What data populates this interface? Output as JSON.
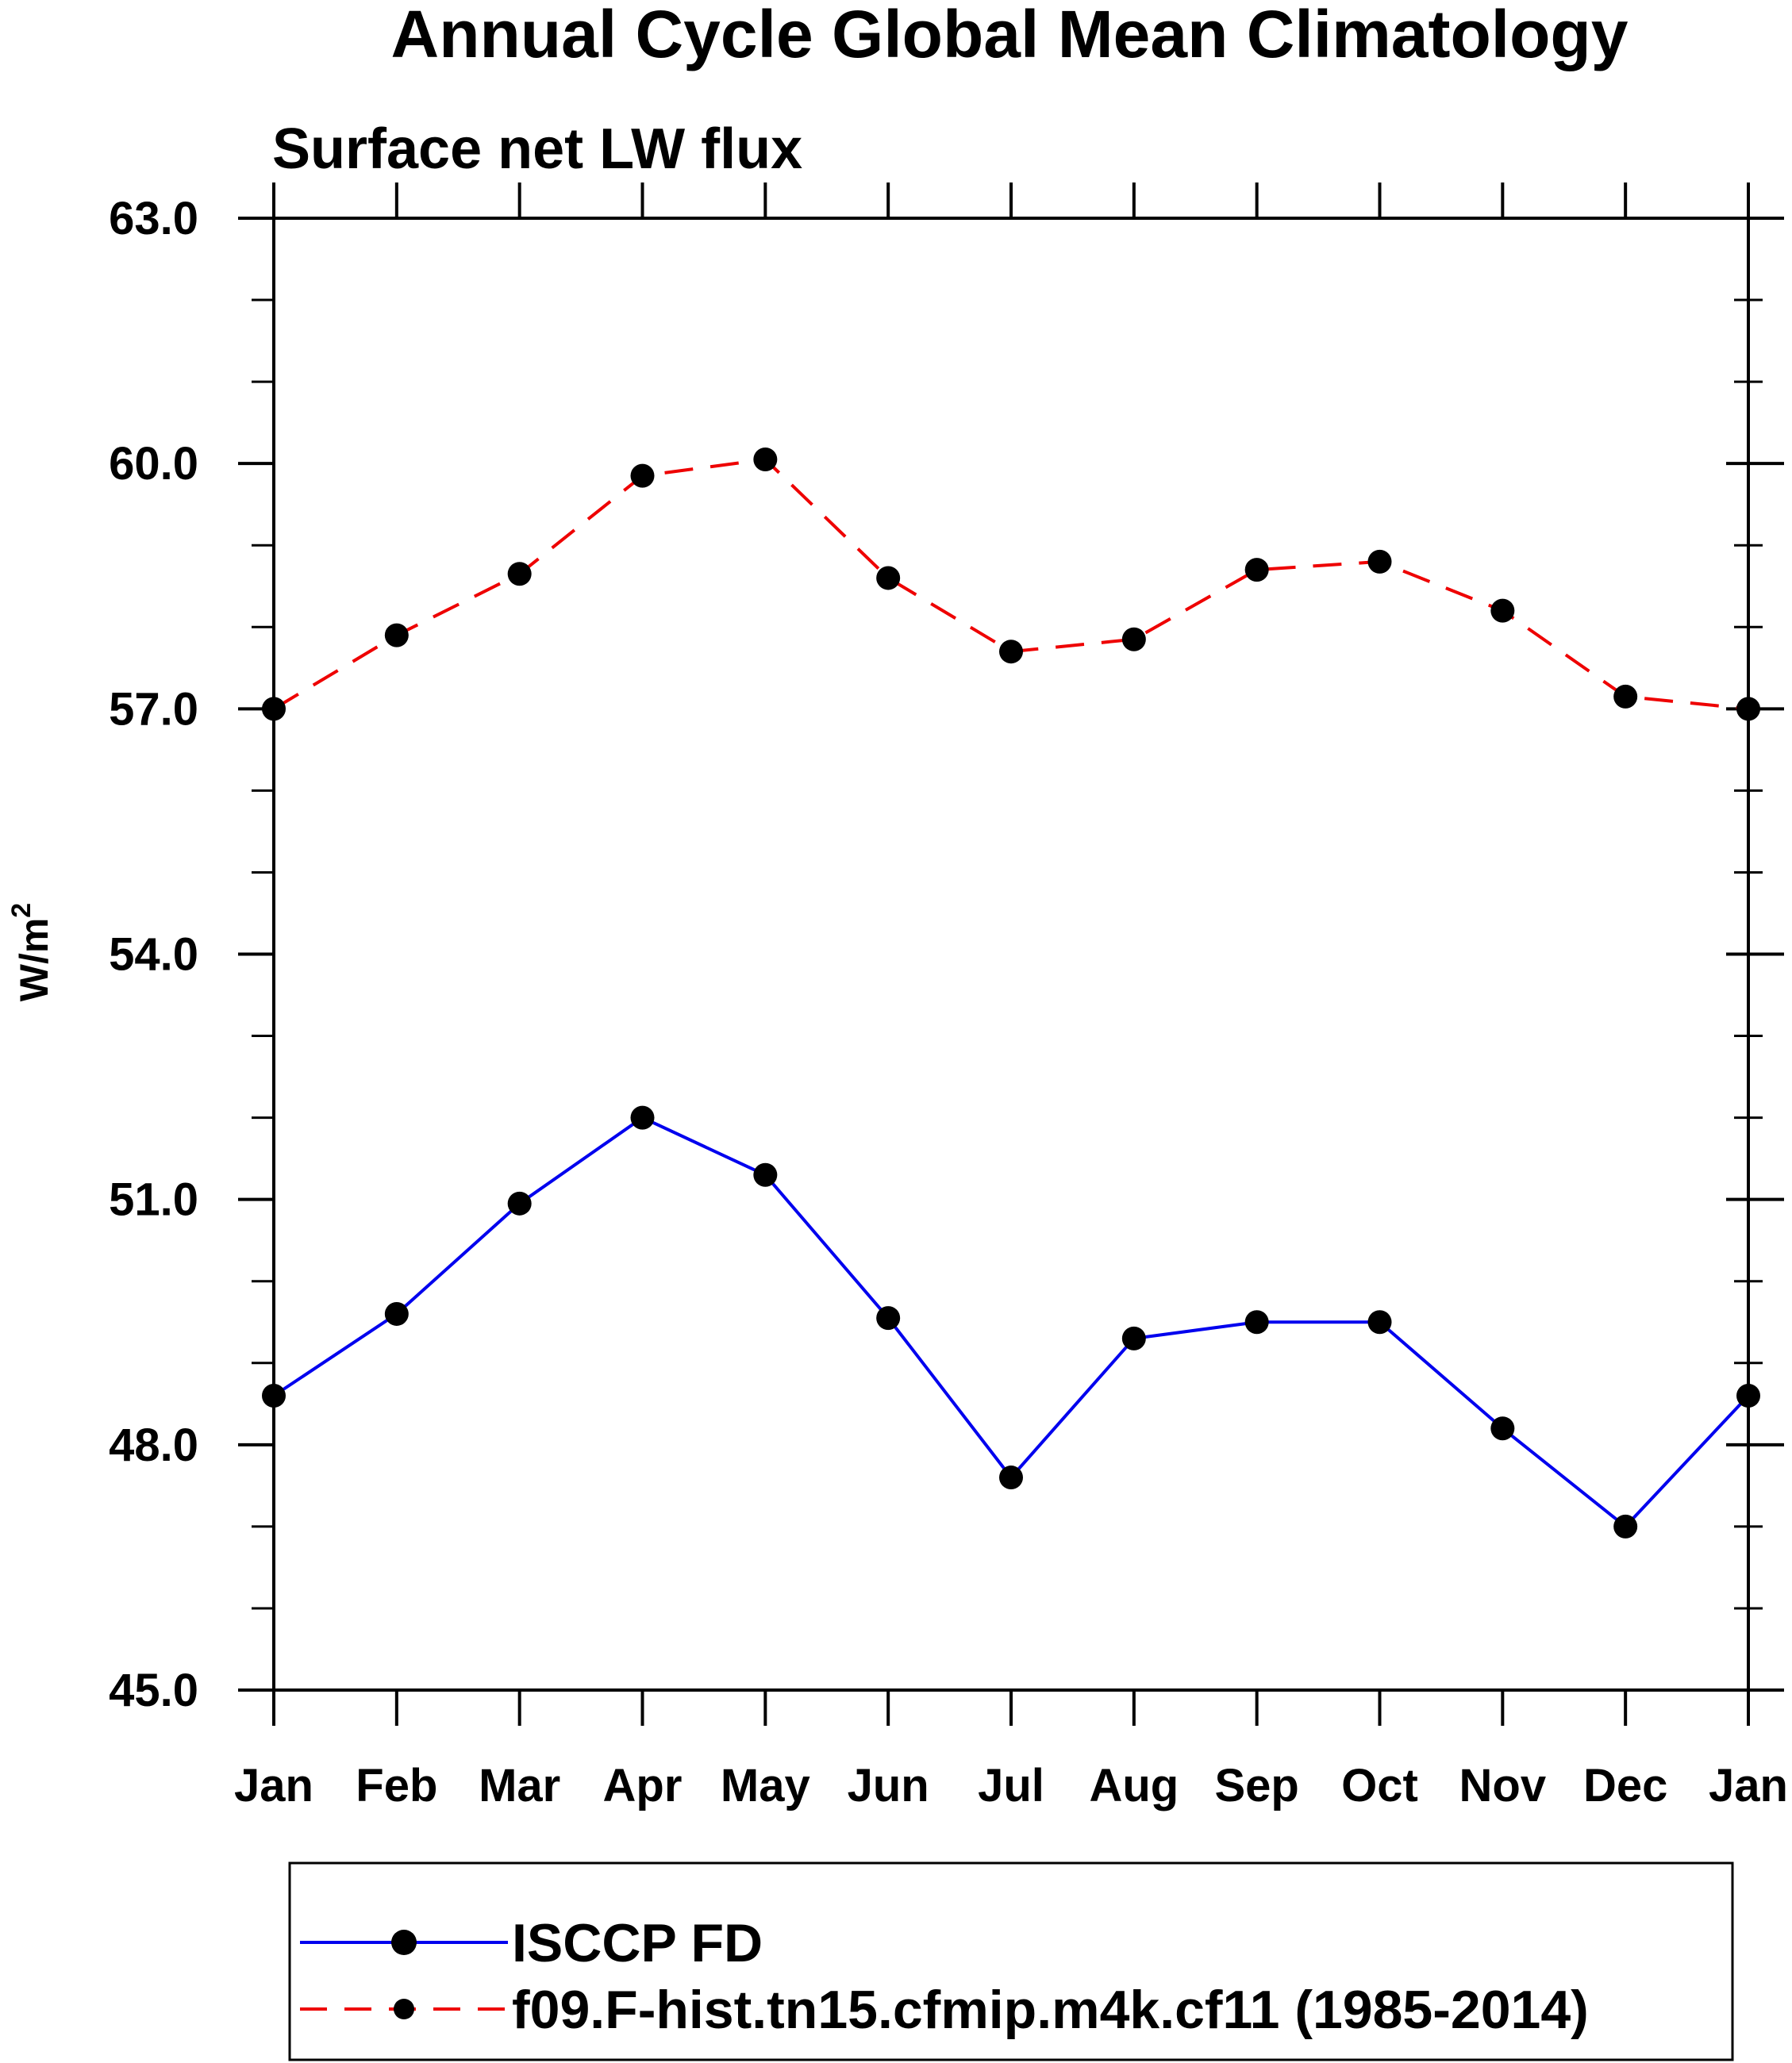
{
  "chart_data": {
    "type": "line",
    "title": "Annual Cycle Global Mean Climatology",
    "subtitle": "Surface net LW flux",
    "ylabel": "W/m",
    "ylabel_superscript": "2",
    "xlabel": "",
    "categories": [
      "Jan",
      "Feb",
      "Mar",
      "Apr",
      "May",
      "Jun",
      "Jul",
      "Aug",
      "Sep",
      "Oct",
      "Nov",
      "Dec",
      "Jan"
    ],
    "ylim": [
      45.0,
      63.0
    ],
    "yticks": [
      "45.0",
      "48.0",
      "51.0",
      "54.0",
      "57.0",
      "60.0",
      "63.0"
    ],
    "ytick_values": [
      45.0,
      48.0,
      51.0,
      54.0,
      57.0,
      60.0,
      63.0
    ],
    "y_minor_step": 1.0,
    "grid": false,
    "legend_position": "bottom",
    "series": [
      {
        "name": "ISCCP FD",
        "color": "#0000ee",
        "linestyle": "solid",
        "marker": "circle",
        "values": [
          48.6,
          49.6,
          50.95,
          52.0,
          51.3,
          49.55,
          47.6,
          49.3,
          49.5,
          49.5,
          48.2,
          47.0,
          48.6
        ]
      },
      {
        "name": "f09.F-hist.tn15.cfmip.m4k.cf11 (1985-2014)",
        "color": "#ee0000",
        "linestyle": "dashed",
        "marker": "circle",
        "values": [
          57.0,
          57.9,
          58.65,
          59.85,
          60.05,
          58.6,
          57.7,
          57.85,
          58.7,
          58.8,
          58.2,
          57.15,
          57.0
        ]
      }
    ]
  }
}
